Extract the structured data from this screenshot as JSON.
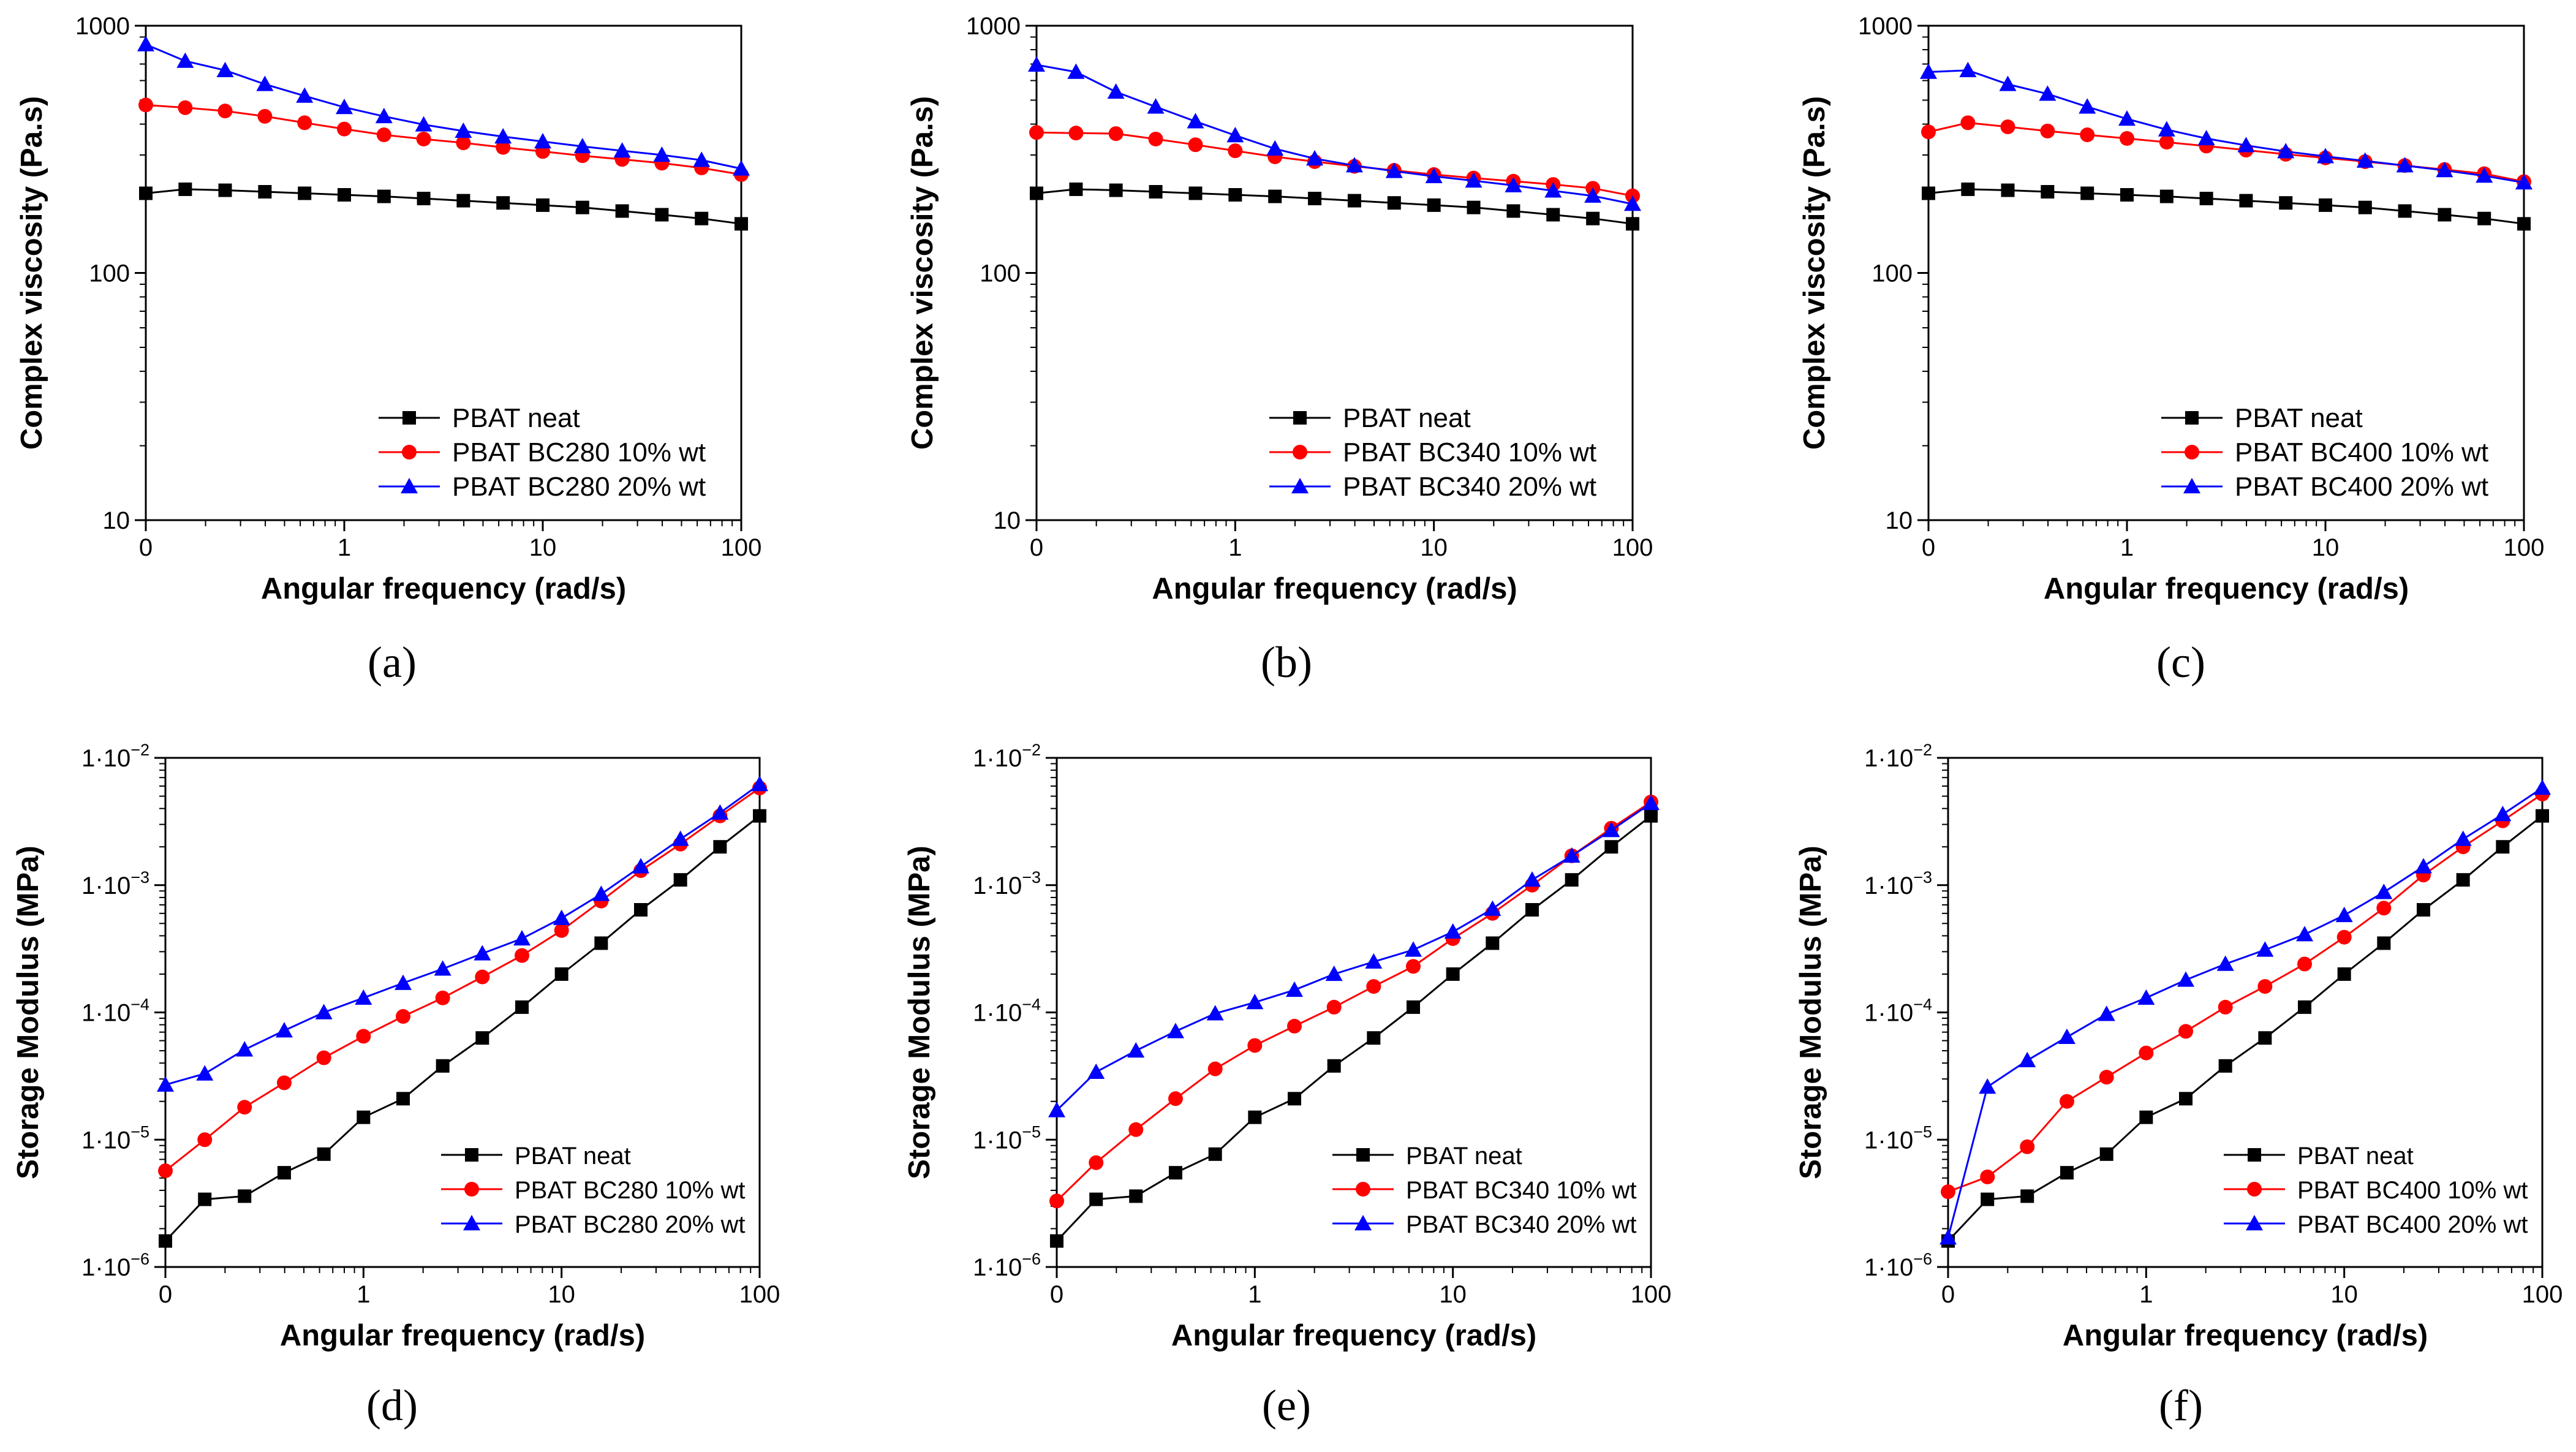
{
  "figure": {
    "captions": [
      "(a)",
      "(b)",
      "(c)",
      "(d)",
      "(e)",
      "(f)"
    ]
  },
  "colors": {
    "series": [
      "#000000",
      "#ff0000",
      "#0000ff"
    ],
    "axis": "#000000"
  },
  "chart_data": [
    {
      "type": "line",
      "panel": "a",
      "xlabel": "Angular frequency (rad/s)",
      "ylabel": "Complex viscosity (Pa.s)",
      "xscale": "log",
      "yscale": "log",
      "xlim": [
        0.1,
        100
      ],
      "ylim": [
        10,
        1000
      ],
      "xticks": [
        0.1,
        1,
        10,
        100
      ],
      "xtick_labels": [
        "0",
        "1",
        "10",
        "100"
      ],
      "yticks": [
        10,
        100,
        1000
      ],
      "ytick_labels": [
        "10",
        "100",
        "1000"
      ],
      "legend_position": "bottom-right",
      "x": [
        0.1,
        0.158,
        0.251,
        0.398,
        0.631,
        1,
        1.585,
        2.512,
        3.981,
        6.31,
        10,
        15.85,
        25.12,
        39.81,
        63.1,
        100
      ],
      "series": [
        {
          "name": "PBAT neat",
          "marker": "square",
          "values": [
            210,
            218,
            216,
            213,
            210,
            207,
            204,
            200,
            196,
            192,
            188,
            184,
            178,
            172,
            166,
            158
          ]
        },
        {
          "name": "PBAT BC280 10% wt",
          "marker": "circle",
          "values": [
            478,
            466,
            452,
            430,
            405,
            382,
            362,
            348,
            336,
            322,
            310,
            298,
            288,
            278,
            266,
            250
          ]
        },
        {
          "name": "PBAT BC280 20% wt",
          "marker": "triangle",
          "values": [
            840,
            720,
            660,
            580,
            520,
            468,
            430,
            398,
            375,
            356,
            340,
            325,
            312,
            300,
            286,
            264
          ]
        }
      ]
    },
    {
      "type": "line",
      "panel": "b",
      "xlabel": "Angular frequency (rad/s)",
      "ylabel": "Complex viscosity (Pa.s)",
      "xscale": "log",
      "yscale": "log",
      "xlim": [
        0.1,
        100
      ],
      "ylim": [
        10,
        1000
      ],
      "xticks": [
        0.1,
        1,
        10,
        100
      ],
      "xtick_labels": [
        "0",
        "1",
        "10",
        "100"
      ],
      "yticks": [
        10,
        100,
        1000
      ],
      "ytick_labels": [
        "10",
        "100",
        "1000"
      ],
      "legend_position": "bottom-right",
      "x": [
        0.1,
        0.158,
        0.251,
        0.398,
        0.631,
        1,
        1.585,
        2.512,
        3.981,
        6.31,
        10,
        15.85,
        25.12,
        39.81,
        63.1,
        100
      ],
      "series": [
        {
          "name": "PBAT neat",
          "marker": "square",
          "values": [
            210,
            218,
            216,
            213,
            210,
            207,
            204,
            200,
            196,
            192,
            188,
            184,
            178,
            172,
            166,
            158
          ]
        },
        {
          "name": "PBAT BC340 10% wt",
          "marker": "circle",
          "values": [
            370,
            368,
            366,
            348,
            330,
            312,
            295,
            282,
            270,
            260,
            250,
            242,
            235,
            228,
            220,
            205
          ]
        },
        {
          "name": "PBAT BC340 20% wt",
          "marker": "triangle",
          "values": [
            695,
            650,
            540,
            470,
            410,
            360,
            318,
            290,
            272,
            258,
            246,
            236,
            226,
            215,
            205,
            190
          ]
        }
      ]
    },
    {
      "type": "line",
      "panel": "c",
      "xlabel": "Angular frequency (rad/s)",
      "ylabel": "Complex viscosity (Pa.s)",
      "xscale": "log",
      "yscale": "log",
      "xlim": [
        0.1,
        100
      ],
      "ylim": [
        10,
        1000
      ],
      "xticks": [
        0.1,
        1,
        10,
        100
      ],
      "xtick_labels": [
        "0",
        "1",
        "10",
        "100"
      ],
      "yticks": [
        10,
        100,
        1000
      ],
      "ytick_labels": [
        "10",
        "100",
        "1000"
      ],
      "legend_position": "bottom-right",
      "x": [
        0.1,
        0.158,
        0.251,
        0.398,
        0.631,
        1,
        1.585,
        2.512,
        3.981,
        6.31,
        10,
        15.85,
        25.12,
        39.81,
        63.1,
        100
      ],
      "series": [
        {
          "name": "PBAT neat",
          "marker": "square",
          "values": [
            210,
            218,
            216,
            213,
            210,
            207,
            204,
            200,
            196,
            192,
            188,
            184,
            178,
            172,
            166,
            158
          ]
        },
        {
          "name": "PBAT BC400 10% wt",
          "marker": "circle",
          "values": [
            372,
            405,
            390,
            375,
            362,
            350,
            338,
            326,
            314,
            302,
            292,
            282,
            272,
            262,
            252,
            234
          ]
        },
        {
          "name": "PBAT BC400 20% wt",
          "marker": "triangle",
          "values": [
            650,
            660,
            580,
            530,
            470,
            420,
            380,
            350,
            328,
            310,
            296,
            284,
            272,
            260,
            247,
            232
          ]
        }
      ]
    },
    {
      "type": "line",
      "panel": "d",
      "xlabel": "Angular frequency (rad/s)",
      "ylabel": "Storage Modulus (MPa)",
      "xscale": "log",
      "yscale": "log",
      "xlim": [
        0.1,
        100
      ],
      "ylim": [
        1e-06,
        0.01
      ],
      "xticks": [
        0.1,
        1,
        10,
        100
      ],
      "xtick_labels": [
        "0",
        "1",
        "10",
        "100"
      ],
      "yticks": [
        1e-06,
        1e-05,
        0.0001,
        0.001,
        0.01
      ],
      "ytick_labels": [
        [
          "1·10",
          "−6"
        ],
        [
          "1·10",
          "−5"
        ],
        [
          "1·10",
          "−4"
        ],
        [
          "1·10",
          "−3"
        ],
        [
          "1·10",
          "−2"
        ]
      ],
      "legend_position": "bottom-right",
      "x": [
        0.1,
        0.158,
        0.251,
        0.398,
        0.631,
        1,
        1.585,
        2.512,
        3.981,
        6.31,
        10,
        15.85,
        25.12,
        39.81,
        63.1,
        100
      ],
      "series": [
        {
          "name": "PBAT neat",
          "marker": "square",
          "values": [
            1.6e-06,
            3.4e-06,
            3.6e-06,
            5.5e-06,
            7.7e-06,
            1.5e-05,
            2.1e-05,
            3.8e-05,
            6.3e-05,
            0.00011,
            0.0002,
            0.00035,
            0.00064,
            0.0011,
            0.002,
            0.0035
          ]
        },
        {
          "name": "PBAT BC280 10% wt",
          "marker": "circle",
          "values": [
            5.7e-06,
            1e-05,
            1.8e-05,
            2.8e-05,
            4.4e-05,
            6.5e-05,
            9.3e-05,
            0.00013,
            0.00019,
            0.00028,
            0.00044,
            0.00075,
            0.0013,
            0.0021,
            0.0035,
            0.0058
          ]
        },
        {
          "name": "PBAT BC280 20% wt",
          "marker": "triangle",
          "values": [
            2.7e-05,
            3.3e-05,
            5.1e-05,
            7.2e-05,
            0.0001,
            0.00013,
            0.00017,
            0.00022,
            0.00029,
            0.00038,
            0.00055,
            0.00085,
            0.0014,
            0.0023,
            0.0037,
            0.0062
          ]
        }
      ]
    },
    {
      "type": "line",
      "panel": "e",
      "xlabel": "Angular frequency (rad/s)",
      "ylabel": "Storage Modulus (MPa)",
      "xscale": "log",
      "yscale": "log",
      "xlim": [
        0.1,
        100
      ],
      "ylim": [
        1e-06,
        0.01
      ],
      "xticks": [
        0.1,
        1,
        10,
        100
      ],
      "xtick_labels": [
        "0",
        "1",
        "10",
        "100"
      ],
      "yticks": [
        1e-06,
        1e-05,
        0.0001,
        0.001,
        0.01
      ],
      "ytick_labels": [
        [
          "1·10",
          "−6"
        ],
        [
          "1·10",
          "−5"
        ],
        [
          "1·10",
          "−4"
        ],
        [
          "1·10",
          "−3"
        ],
        [
          "1·10",
          "−2"
        ]
      ],
      "legend_position": "bottom-right",
      "x": [
        0.1,
        0.158,
        0.251,
        0.398,
        0.631,
        1,
        1.585,
        2.512,
        3.981,
        6.31,
        10,
        15.85,
        25.12,
        39.81,
        63.1,
        100
      ],
      "series": [
        {
          "name": "PBAT neat",
          "marker": "square",
          "values": [
            1.6e-06,
            3.4e-06,
            3.6e-06,
            5.5e-06,
            7.7e-06,
            1.5e-05,
            2.1e-05,
            3.8e-05,
            6.3e-05,
            0.00011,
            0.0002,
            0.00035,
            0.00064,
            0.0011,
            0.002,
            0.0035
          ]
        },
        {
          "name": "PBAT BC340 10% wt",
          "marker": "circle",
          "values": [
            3.3e-06,
            6.6e-06,
            1.2e-05,
            2.1e-05,
            3.6e-05,
            5.5e-05,
            7.8e-05,
            0.00011,
            0.00016,
            0.00023,
            0.00038,
            0.0006,
            0.001,
            0.0017,
            0.0028,
            0.0045
          ]
        },
        {
          "name": "PBAT BC340 20% wt",
          "marker": "triangle",
          "values": [
            1.7e-05,
            3.4e-05,
            5e-05,
            7.1e-05,
            9.8e-05,
            0.00012,
            0.00015,
            0.0002,
            0.00025,
            0.00031,
            0.00043,
            0.00065,
            0.0011,
            0.0017,
            0.0027,
            0.0044
          ]
        }
      ]
    },
    {
      "type": "line",
      "panel": "f",
      "xlabel": "Angular frequency (rad/s)",
      "ylabel": "Storage Modulus (MPa)",
      "xscale": "log",
      "yscale": "log",
      "xlim": [
        0.1,
        100
      ],
      "ylim": [
        1e-06,
        0.01
      ],
      "xticks": [
        0.1,
        1,
        10,
        100
      ],
      "xtick_labels": [
        "0",
        "1",
        "10",
        "100"
      ],
      "yticks": [
        1e-06,
        1e-05,
        0.0001,
        0.001,
        0.01
      ],
      "ytick_labels": [
        [
          "1·10",
          "−6"
        ],
        [
          "1·10",
          "−5"
        ],
        [
          "1·10",
          "−4"
        ],
        [
          "1·10",
          "−3"
        ],
        [
          "1·10",
          "−2"
        ]
      ],
      "legend_position": "bottom-right",
      "x": [
        0.1,
        0.158,
        0.251,
        0.398,
        0.631,
        1,
        1.585,
        2.512,
        3.981,
        6.31,
        10,
        15.85,
        25.12,
        39.81,
        63.1,
        100
      ],
      "series": [
        {
          "name": "PBAT neat",
          "marker": "square",
          "values": [
            1.6e-06,
            3.4e-06,
            3.6e-06,
            5.5e-06,
            7.7e-06,
            1.5e-05,
            2.1e-05,
            3.8e-05,
            6.3e-05,
            0.00011,
            0.0002,
            0.00035,
            0.00064,
            0.0011,
            0.002,
            0.0035
          ]
        },
        {
          "name": "PBAT BC400 10% wt",
          "marker": "circle",
          "values": [
            3.9e-06,
            5.1e-06,
            8.8e-06,
            2e-05,
            3.1e-05,
            4.8e-05,
            7.1e-05,
            0.00011,
            0.00016,
            0.00024,
            0.00039,
            0.00066,
            0.0012,
            0.002,
            0.0032,
            0.0052
          ]
        },
        {
          "name": "PBAT BC400 20% wt",
          "marker": "triangle",
          "values": [
            1.7e-06,
            2.6e-05,
            4.2e-05,
            6.4e-05,
            9.7e-05,
            0.00013,
            0.00018,
            0.00024,
            0.00031,
            0.00041,
            0.00058,
            0.00088,
            0.0014,
            0.0023,
            0.0036,
            0.0058
          ]
        }
      ]
    }
  ]
}
